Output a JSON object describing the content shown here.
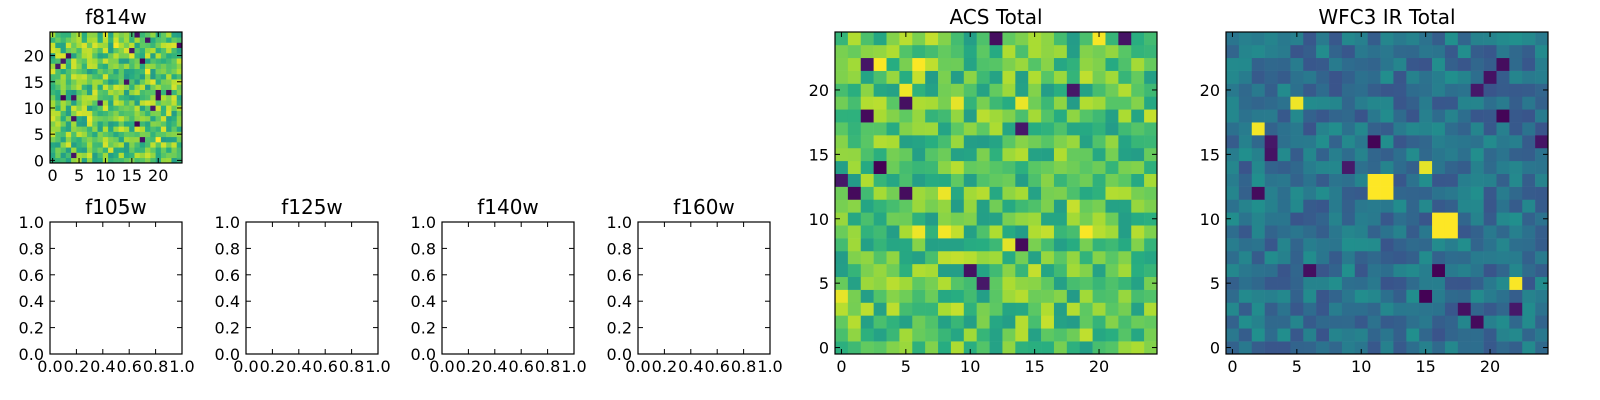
{
  "chart_data": [
    {
      "type": "heatmap",
      "title": "f814w",
      "size": 25,
      "xticks": [
        "0",
        "5",
        "10",
        "15",
        "20"
      ],
      "yticks": [
        "0",
        "5",
        "10",
        "15",
        "20"
      ],
      "colormap": "viridis",
      "seed": 11,
      "base_range": [
        0.55,
        0.95
      ],
      "low_count": 20,
      "high_count": 6,
      "hotspots": []
    },
    {
      "type": "heatmap",
      "title": "ACS Total",
      "size": 25,
      "xticks": [
        "0",
        "5",
        "10",
        "15",
        "20"
      ],
      "yticks": [
        "0",
        "5",
        "10",
        "15",
        "20"
      ],
      "colormap": "viridis",
      "seed": 23,
      "base_range": [
        0.55,
        0.92
      ],
      "low_count": 14,
      "high_count": 12,
      "hotspots": []
    },
    {
      "type": "heatmap",
      "title": "WFC3 IR Total",
      "size": 25,
      "xticks": [
        "0",
        "5",
        "10",
        "15",
        "20"
      ],
      "yticks": [
        "0",
        "5",
        "10",
        "15",
        "20"
      ],
      "colormap": "viridis",
      "seed": 37,
      "base_range": [
        0.26,
        0.5
      ],
      "low_count": 16,
      "high_count": 4,
      "hotspots": [
        {
          "x": 11,
          "y": 12,
          "value": 1.0
        },
        {
          "x": 12,
          "y": 12,
          "value": 1.0
        },
        {
          "x": 11,
          "y": 13,
          "value": 1.0
        },
        {
          "x": 12,
          "y": 13,
          "value": 1.0
        },
        {
          "x": 16,
          "y": 9,
          "value": 1.0
        },
        {
          "x": 17,
          "y": 9,
          "value": 1.0
        },
        {
          "x": 16,
          "y": 10,
          "value": 1.0
        },
        {
          "x": 17,
          "y": 10,
          "value": 1.0
        }
      ]
    },
    {
      "type": "empty",
      "title": "f105w",
      "xticks": [
        "0.0",
        "0.2",
        "0.4",
        "0.6",
        "0.8",
        "1.0"
      ],
      "yticks": [
        "0.0",
        "0.2",
        "0.4",
        "0.6",
        "0.8",
        "1.0"
      ]
    },
    {
      "type": "empty",
      "title": "f125w",
      "xticks": [
        "0.0",
        "0.2",
        "0.4",
        "0.6",
        "0.8",
        "1.0"
      ],
      "yticks": [
        "0.0",
        "0.2",
        "0.4",
        "0.6",
        "0.8",
        "1.0"
      ]
    },
    {
      "type": "empty",
      "title": "f140w",
      "xticks": [
        "0.0",
        "0.2",
        "0.4",
        "0.6",
        "0.8",
        "1.0"
      ],
      "yticks": [
        "0.0",
        "0.2",
        "0.4",
        "0.6",
        "0.8",
        "1.0"
      ]
    },
    {
      "type": "empty",
      "title": "f160w",
      "xticks": [
        "0.0",
        "0.2",
        "0.4",
        "0.6",
        "0.8",
        "1.0"
      ],
      "yticks": [
        "0.0",
        "0.2",
        "0.4",
        "0.6",
        "0.8",
        "1.0"
      ]
    }
  ]
}
